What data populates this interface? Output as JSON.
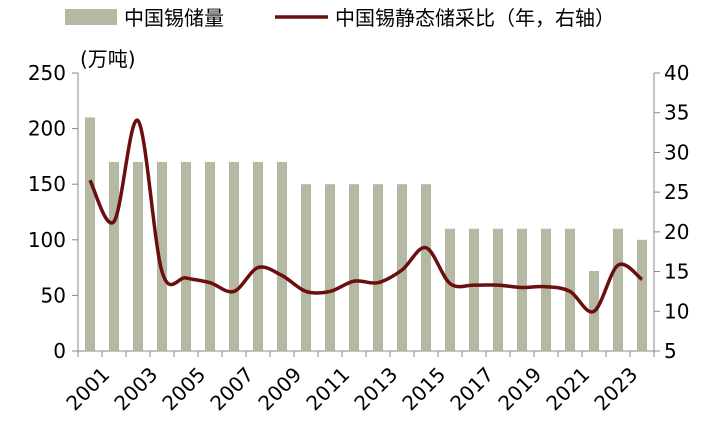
{
  "chart_data": {
    "type": "bar",
    "categories": [
      "2001",
      "2002",
      "2003",
      "2004",
      "2005",
      "2006",
      "2007",
      "2008",
      "2009",
      "2010",
      "2011",
      "2012",
      "2013",
      "2014",
      "2015",
      "2016",
      "2017",
      "2018",
      "2019",
      "2020",
      "2021",
      "2022",
      "2023",
      "2024"
    ],
    "x_tick_labels": [
      "2001",
      "2003",
      "2005",
      "2007",
      "2009",
      "2011",
      "2013",
      "2015",
      "2017",
      "2019",
      "2021",
      "2023"
    ],
    "series": [
      {
        "name": "中国锡储量",
        "type": "bar",
        "axis": "left",
        "color": "#b5b8a3",
        "values": [
          210,
          170,
          170,
          170,
          170,
          170,
          170,
          170,
          170,
          150,
          150,
          150,
          150,
          150,
          150,
          110,
          110,
          110,
          110,
          110,
          110,
          72,
          110,
          100
        ]
      },
      {
        "name": "中国锡静态储采比（年，右轴）",
        "type": "line",
        "axis": "right",
        "color": "#6b0e0e",
        "values": [
          26.5,
          21.3,
          34.0,
          15.0,
          14.2,
          13.6,
          12.5,
          15.5,
          14.5,
          12.5,
          12.5,
          13.8,
          13.6,
          15.2,
          18.0,
          13.5,
          13.3,
          13.3,
          13.0,
          13.1,
          12.5,
          10.0,
          15.8,
          14.0
        ]
      }
    ],
    "left_axis": {
      "unit_label": "(万吨)",
      "ylim": [
        0,
        250
      ],
      "ticks": [
        "0",
        "50",
        "100",
        "150",
        "200",
        "250"
      ]
    },
    "right_axis": {
      "ylim": [
        5,
        40
      ],
      "ticks": [
        "5",
        "10",
        "15",
        "20",
        "25",
        "30",
        "35",
        "40"
      ]
    },
    "grid": false,
    "legend_position": "top"
  }
}
